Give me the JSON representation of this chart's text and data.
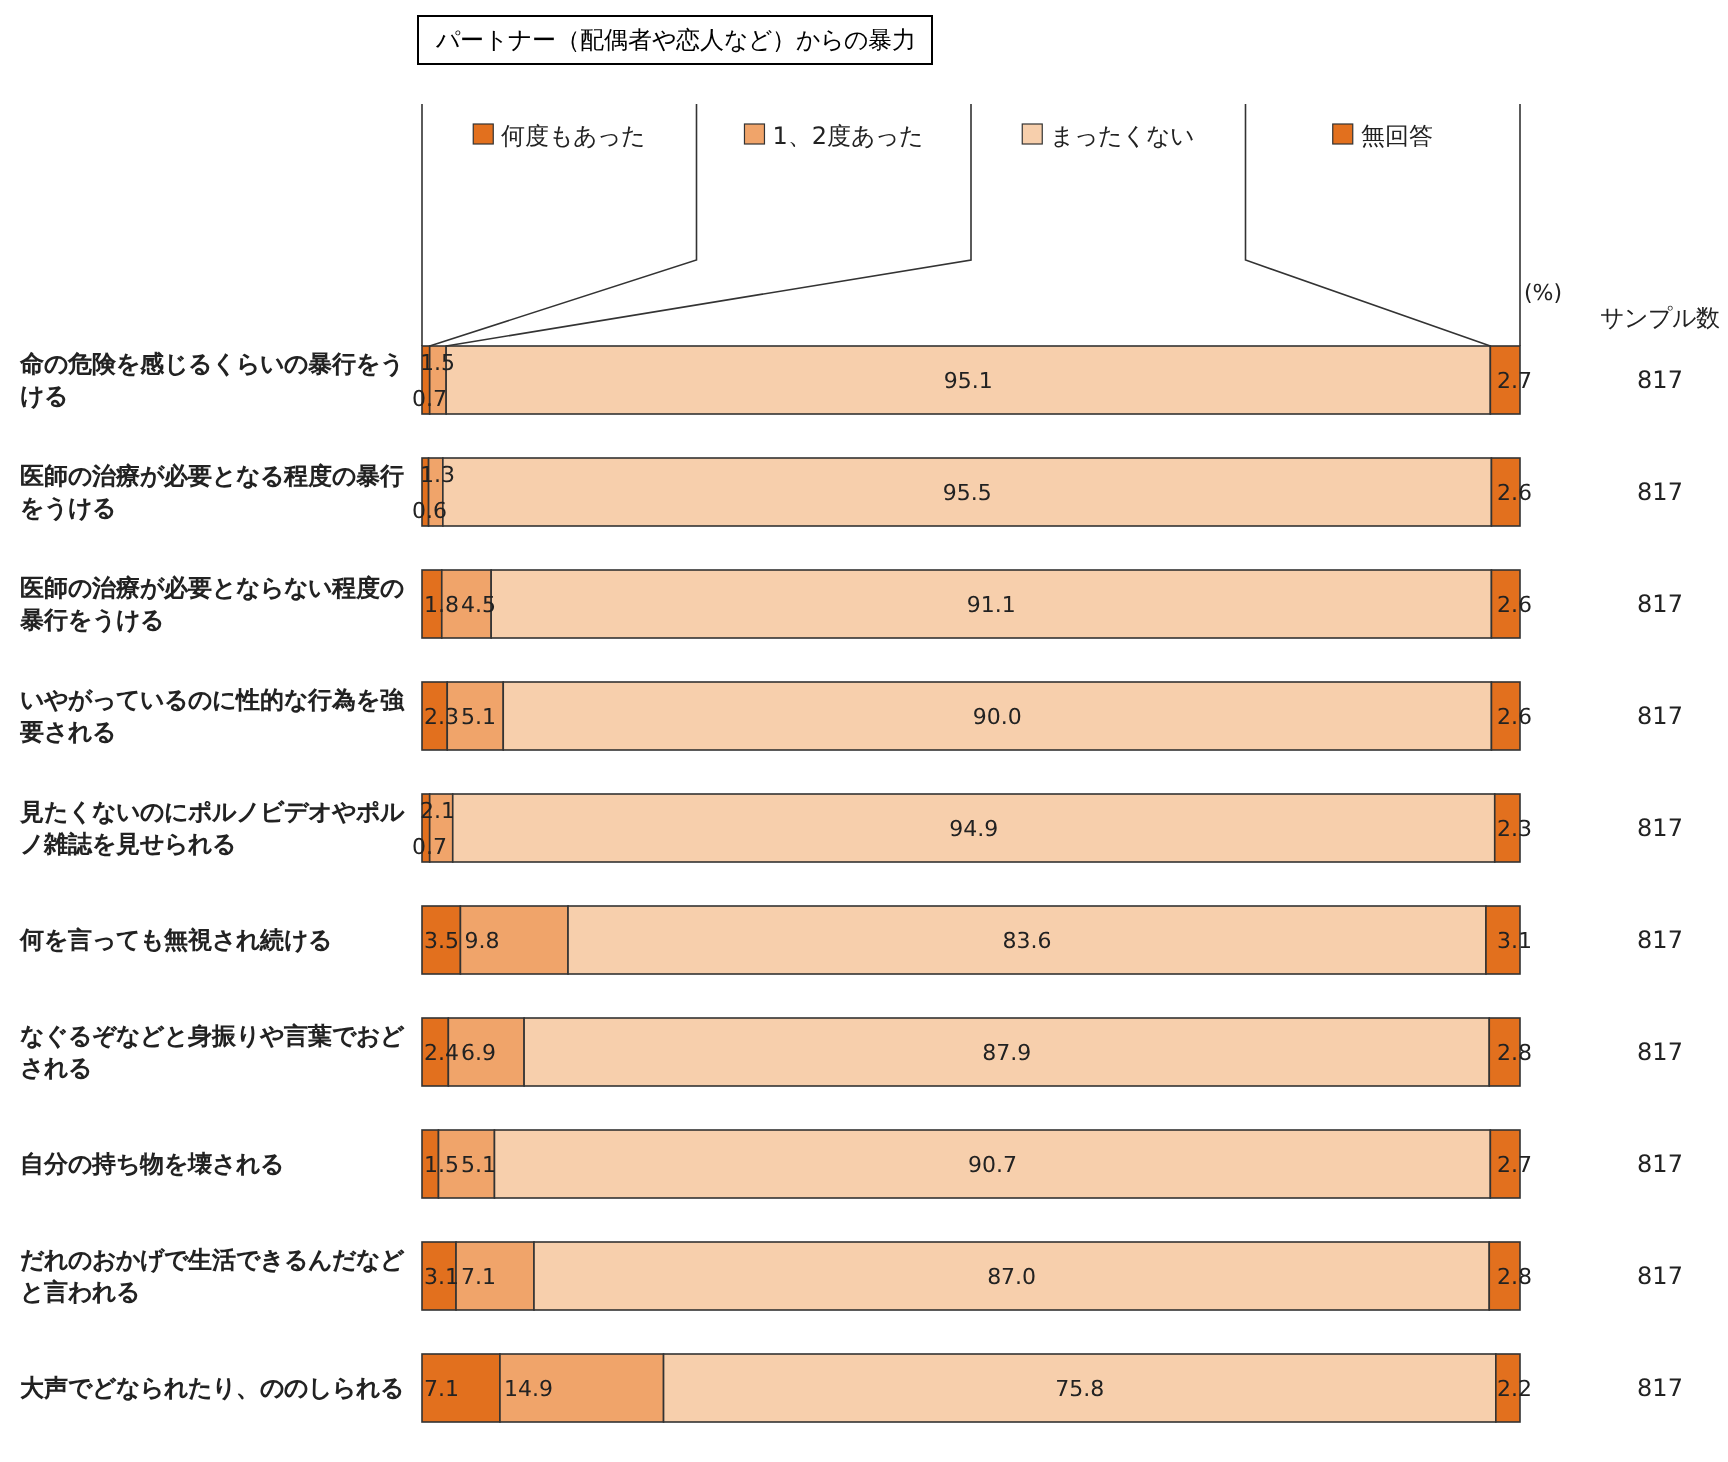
{
  "chart_data": {
    "type": "bar",
    "orientation": "horizontal",
    "stacked": true,
    "legend": "top",
    "title": "パートナー（配偶者や恋人など）からの暴力",
    "categories": [
      "命の危険を感じるくらいの暴行をうける",
      "医師の治療が必要となる程度の暴行をうける",
      "医師の治療が必要とならない程度の暴行をうける",
      "いやがっているのに性的な行為を強要される",
      "見たくないのにポルノビデオやポルノ雑誌を見せられる",
      "何を言っても無視され続ける",
      "なぐるぞなどと身振りや言葉でおどされる",
      "自分の持ち物を壊される",
      "だれのおかげで生活できるんだなどと言われる",
      "大声でどなられたり、ののしられる"
    ],
    "series": [
      {
        "name": "何度もあった",
        "color": "#e2701e",
        "values": [
          0.7,
          0.6,
          1.8,
          2.3,
          0.7,
          3.5,
          2.4,
          1.5,
          3.1,
          7.1
        ],
        "value_labels": [
          "0.7",
          "0.6",
          "1.8",
          "2.3",
          "0.7",
          "3.5",
          "2.4",
          "1.5",
          "3.1",
          "7.1"
        ]
      },
      {
        "name": "1、2度あった",
        "color": "#f0a46a",
        "values": [
          1.5,
          1.3,
          4.5,
          5.1,
          2.1,
          9.8,
          6.9,
          5.1,
          7.1,
          14.9
        ],
        "value_labels": [
          "1.5",
          "1.3",
          "4.5",
          "5.1",
          "2.1",
          "9.8",
          "6.9",
          "5.1",
          "7.1",
          "14.9"
        ]
      },
      {
        "name": "まったくない",
        "color": "#f7cfac",
        "values": [
          95.1,
          95.5,
          91.1,
          90.0,
          94.9,
          83.6,
          87.9,
          90.7,
          87.0,
          75.8
        ],
        "value_labels": [
          "95.1",
          "95.5",
          "91.1",
          "90.0",
          "94.9",
          "83.6",
          "87.9",
          "90.7",
          "87.0",
          "75.8"
        ]
      },
      {
        "name": "無回答",
        "color": "#e2701e",
        "values": [
          2.7,
          2.6,
          2.6,
          2.6,
          2.3,
          3.1,
          2.8,
          2.7,
          2.8,
          2.2
        ],
        "value_labels": [
          "2.7",
          "2.6",
          "2.6",
          "2.6",
          "2.3",
          "3.1",
          "2.8",
          "2.7",
          "2.8",
          "2.2"
        ]
      }
    ],
    "annotations": [
      "(%)",
      "サンプル数",
      "817",
      "817",
      "817",
      "817",
      "817",
      "817",
      "817",
      "817",
      "817",
      "817"
    ]
  }
}
